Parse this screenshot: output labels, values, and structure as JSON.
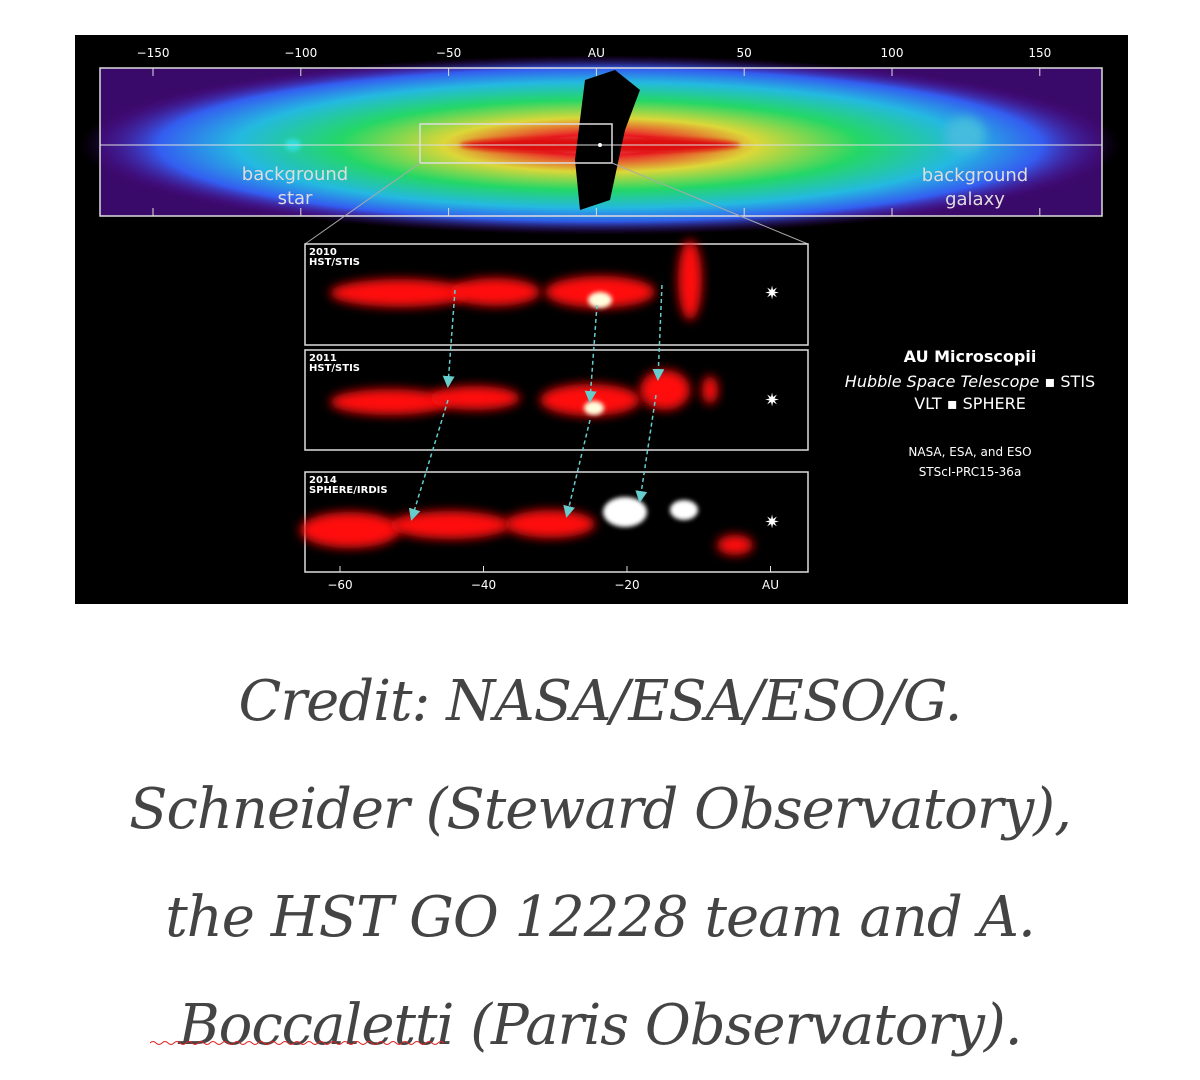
{
  "figure": {
    "top_axis": [
      "−150",
      "−100",
      "−50",
      "AU",
      "50",
      "100",
      "150"
    ],
    "annotations": {
      "star": [
        "background",
        "star"
      ],
      "galaxy": [
        "background",
        "galaxy"
      ]
    },
    "panels": [
      [
        "2010",
        "HST/STIS"
      ],
      [
        "2011",
        "HST/STIS"
      ],
      [
        "2014",
        "SPHERE/IRDIS"
      ]
    ],
    "bottom_axis": [
      "−60",
      "−40",
      "−20",
      "AU"
    ],
    "legend": {
      "title": "AU Microscopii",
      "line1_italic": "Hubble Space Telescope",
      "line1_rest": "▪ STIS",
      "line2": "VLT ▪ SPHERE",
      "credit1": "NASA, ESA, and ESO",
      "credit2": "STScI-PRC15-36a"
    }
  },
  "caption": {
    "lines": [
      "Credit: NASA/ESA/ESO/G.",
      "Schneider (Steward Observatory),",
      "the HST GO 12228 team and A.",
      "Boccaletti (Paris Observatory)."
    ]
  }
}
